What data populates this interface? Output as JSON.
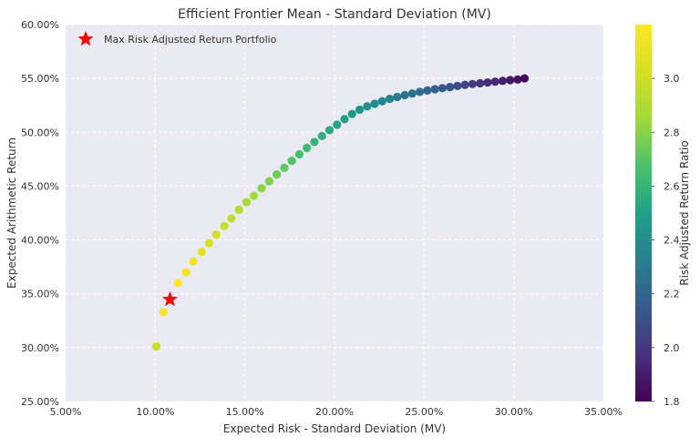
{
  "chart_data": {
    "type": "scatter",
    "title": "Efficient Frontier Mean - Standard Deviation (MV)",
    "xlabel": "Expected Risk - Standard Deviation (MV)",
    "ylabel": "Expected Arithmetic Return",
    "xlim": [
      0.05,
      0.35
    ],
    "ylim": [
      0.25,
      0.6
    ],
    "xticks": [
      {
        "value": 0.05,
        "label": "5.00%"
      },
      {
        "value": 0.1,
        "label": "10.00%"
      },
      {
        "value": 0.15,
        "label": "15.00%"
      },
      {
        "value": 0.2,
        "label": "20.00%"
      },
      {
        "value": 0.25,
        "label": "25.00%"
      },
      {
        "value": 0.3,
        "label": "30.00%"
      },
      {
        "value": 0.35,
        "label": "35.00%"
      }
    ],
    "yticks": [
      {
        "value": 0.25,
        "label": "25.00%"
      },
      {
        "value": 0.3,
        "label": "30.00%"
      },
      {
        "value": 0.35,
        "label": "35.00%"
      },
      {
        "value": 0.4,
        "label": "40.00%"
      },
      {
        "value": 0.45,
        "label": "45.00%"
      },
      {
        "value": 0.5,
        "label": "50.00%"
      },
      {
        "value": 0.55,
        "label": "55.00%"
      },
      {
        "value": 0.6,
        "label": "60.00%"
      }
    ],
    "grid": true,
    "legend": {
      "position": "top-left",
      "label": "Max Risk Adjusted Return Portfolio",
      "marker": "red-star"
    },
    "colorbar": {
      "label": "Risk Adjusted Return Ratio",
      "range": [
        1.8,
        3.2
      ],
      "ticks": [
        {
          "value": 1.8,
          "label": "1.8"
        },
        {
          "value": 2.0,
          "label": "2.0"
        },
        {
          "value": 2.2,
          "label": "2.2"
        },
        {
          "value": 2.4,
          "label": "2.4"
        },
        {
          "value": 2.6,
          "label": "2.6"
        },
        {
          "value": 2.8,
          "label": "2.8"
        },
        {
          "value": 3.0,
          "label": "3.0"
        }
      ],
      "colormap": "viridis"
    },
    "points": [
      {
        "x": 0.1006,
        "y": 0.3012,
        "ratio": 2.99
      },
      {
        "x": 0.1047,
        "y": 0.333,
        "ratio": 3.18
      },
      {
        "x": 0.1126,
        "y": 0.36,
        "ratio": 3.2
      },
      {
        "x": 0.1172,
        "y": 0.37,
        "ratio": 3.16
      },
      {
        "x": 0.1213,
        "y": 0.38,
        "ratio": 3.13
      },
      {
        "x": 0.1259,
        "y": 0.389,
        "ratio": 3.09
      },
      {
        "x": 0.13,
        "y": 0.397,
        "ratio": 3.05
      },
      {
        "x": 0.134,
        "y": 0.405,
        "ratio": 3.02
      },
      {
        "x": 0.1385,
        "y": 0.413,
        "ratio": 2.98
      },
      {
        "x": 0.1425,
        "y": 0.42,
        "ratio": 2.95
      },
      {
        "x": 0.1467,
        "y": 0.428,
        "ratio": 2.92
      },
      {
        "x": 0.1509,
        "y": 0.435,
        "ratio": 2.88
      },
      {
        "x": 0.155,
        "y": 0.441,
        "ratio": 2.85
      },
      {
        "x": 0.1593,
        "y": 0.448,
        "ratio": 2.81
      },
      {
        "x": 0.1636,
        "y": 0.4545,
        "ratio": 2.78
      },
      {
        "x": 0.1678,
        "y": 0.4608,
        "ratio": 2.75
      },
      {
        "x": 0.172,
        "y": 0.467,
        "ratio": 2.72
      },
      {
        "x": 0.1762,
        "y": 0.4735,
        "ratio": 2.69
      },
      {
        "x": 0.1804,
        "y": 0.4795,
        "ratio": 2.66
      },
      {
        "x": 0.1846,
        "y": 0.4855,
        "ratio": 2.63
      },
      {
        "x": 0.1888,
        "y": 0.491,
        "ratio": 2.6
      },
      {
        "x": 0.193,
        "y": 0.4965,
        "ratio": 2.57
      },
      {
        "x": 0.1972,
        "y": 0.502,
        "ratio": 2.55
      },
      {
        "x": 0.2014,
        "y": 0.507,
        "ratio": 2.52
      },
      {
        "x": 0.2056,
        "y": 0.5122,
        "ratio": 2.49
      },
      {
        "x": 0.2098,
        "y": 0.517,
        "ratio": 2.47
      },
      {
        "x": 0.214,
        "y": 0.521,
        "ratio": 2.44
      },
      {
        "x": 0.2182,
        "y": 0.524,
        "ratio": 2.42
      },
      {
        "x": 0.2224,
        "y": 0.5265,
        "ratio": 2.39
      },
      {
        "x": 0.2266,
        "y": 0.5288,
        "ratio": 2.36
      },
      {
        "x": 0.2308,
        "y": 0.531,
        "ratio": 2.34
      },
      {
        "x": 0.235,
        "y": 0.5328,
        "ratio": 2.31
      },
      {
        "x": 0.2392,
        "y": 0.5345,
        "ratio": 2.28
      },
      {
        "x": 0.2434,
        "y": 0.536,
        "ratio": 2.26
      },
      {
        "x": 0.2476,
        "y": 0.5375,
        "ratio": 2.23
      },
      {
        "x": 0.2518,
        "y": 0.5388,
        "ratio": 2.2
      },
      {
        "x": 0.256,
        "y": 0.54,
        "ratio": 2.17
      },
      {
        "x": 0.2602,
        "y": 0.541,
        "ratio": 2.14
      },
      {
        "x": 0.2644,
        "y": 0.542,
        "ratio": 2.11
      },
      {
        "x": 0.2686,
        "y": 0.543,
        "ratio": 2.08
      },
      {
        "x": 0.2728,
        "y": 0.544,
        "ratio": 2.05
      },
      {
        "x": 0.277,
        "y": 0.5448,
        "ratio": 2.02
      },
      {
        "x": 0.2812,
        "y": 0.5455,
        "ratio": 1.99
      },
      {
        "x": 0.2854,
        "y": 0.5462,
        "ratio": 1.96
      },
      {
        "x": 0.2896,
        "y": 0.547,
        "ratio": 1.94
      },
      {
        "x": 0.2938,
        "y": 0.5477,
        "ratio": 1.91
      },
      {
        "x": 0.298,
        "y": 0.5484,
        "ratio": 1.88
      },
      {
        "x": 0.3022,
        "y": 0.549,
        "ratio": 1.85
      },
      {
        "x": 0.306,
        "y": 0.55,
        "ratio": 1.82
      }
    ],
    "highlight": {
      "x": 0.1082,
      "y": 0.3447,
      "label": "Max Risk Adjusted Return Portfolio"
    }
  }
}
